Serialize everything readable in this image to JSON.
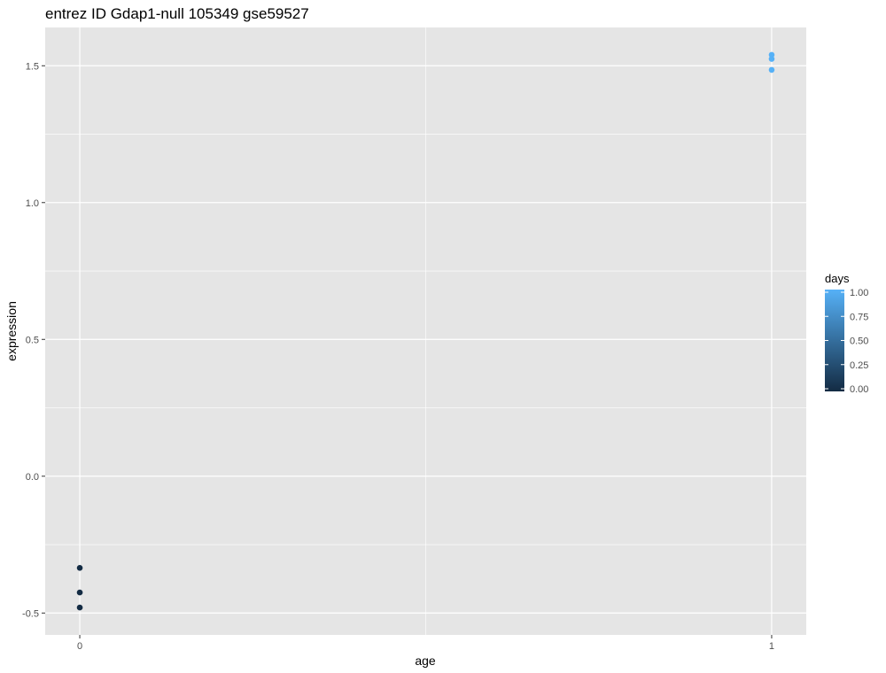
{
  "chart_data": {
    "type": "scatter",
    "title": "entrez ID Gdap1-null 105349 gse59527",
    "xlabel": "age",
    "ylabel": "expression",
    "xlim": [
      -0.05,
      1.05
    ],
    "ylim": [
      -0.58,
      1.64
    ],
    "x_ticks": [
      0,
      1
    ],
    "x_tick_labels": [
      "0",
      "1"
    ],
    "y_ticks": [
      -0.5,
      0.0,
      0.5,
      1.0,
      1.5
    ],
    "y_tick_labels": [
      "-0.5",
      "0.0",
      "0.5",
      "1.0",
      "1.5"
    ],
    "grid": true,
    "panel_background": "#e5e5e5",
    "grid_color": "#ffffff",
    "points": [
      {
        "x": 0,
        "y": -0.335,
        "days": 0
      },
      {
        "x": 0,
        "y": -0.425,
        "days": 0
      },
      {
        "x": 0,
        "y": -0.48,
        "days": 0
      },
      {
        "x": 1,
        "y": 1.54,
        "days": 1
      },
      {
        "x": 1,
        "y": 1.525,
        "days": 1
      },
      {
        "x": 1,
        "y": 1.485,
        "days": 1
      }
    ],
    "color_scale": {
      "title": "days",
      "low_color": "#132b43",
      "high_color": "#56b1f7",
      "range": [
        0,
        1
      ],
      "ticks": [
        0.0,
        0.25,
        0.5,
        0.75,
        1.0
      ],
      "tick_labels": [
        "0.00",
        "0.25",
        "0.50",
        "0.75",
        "1.00"
      ],
      "placement": "right"
    }
  }
}
